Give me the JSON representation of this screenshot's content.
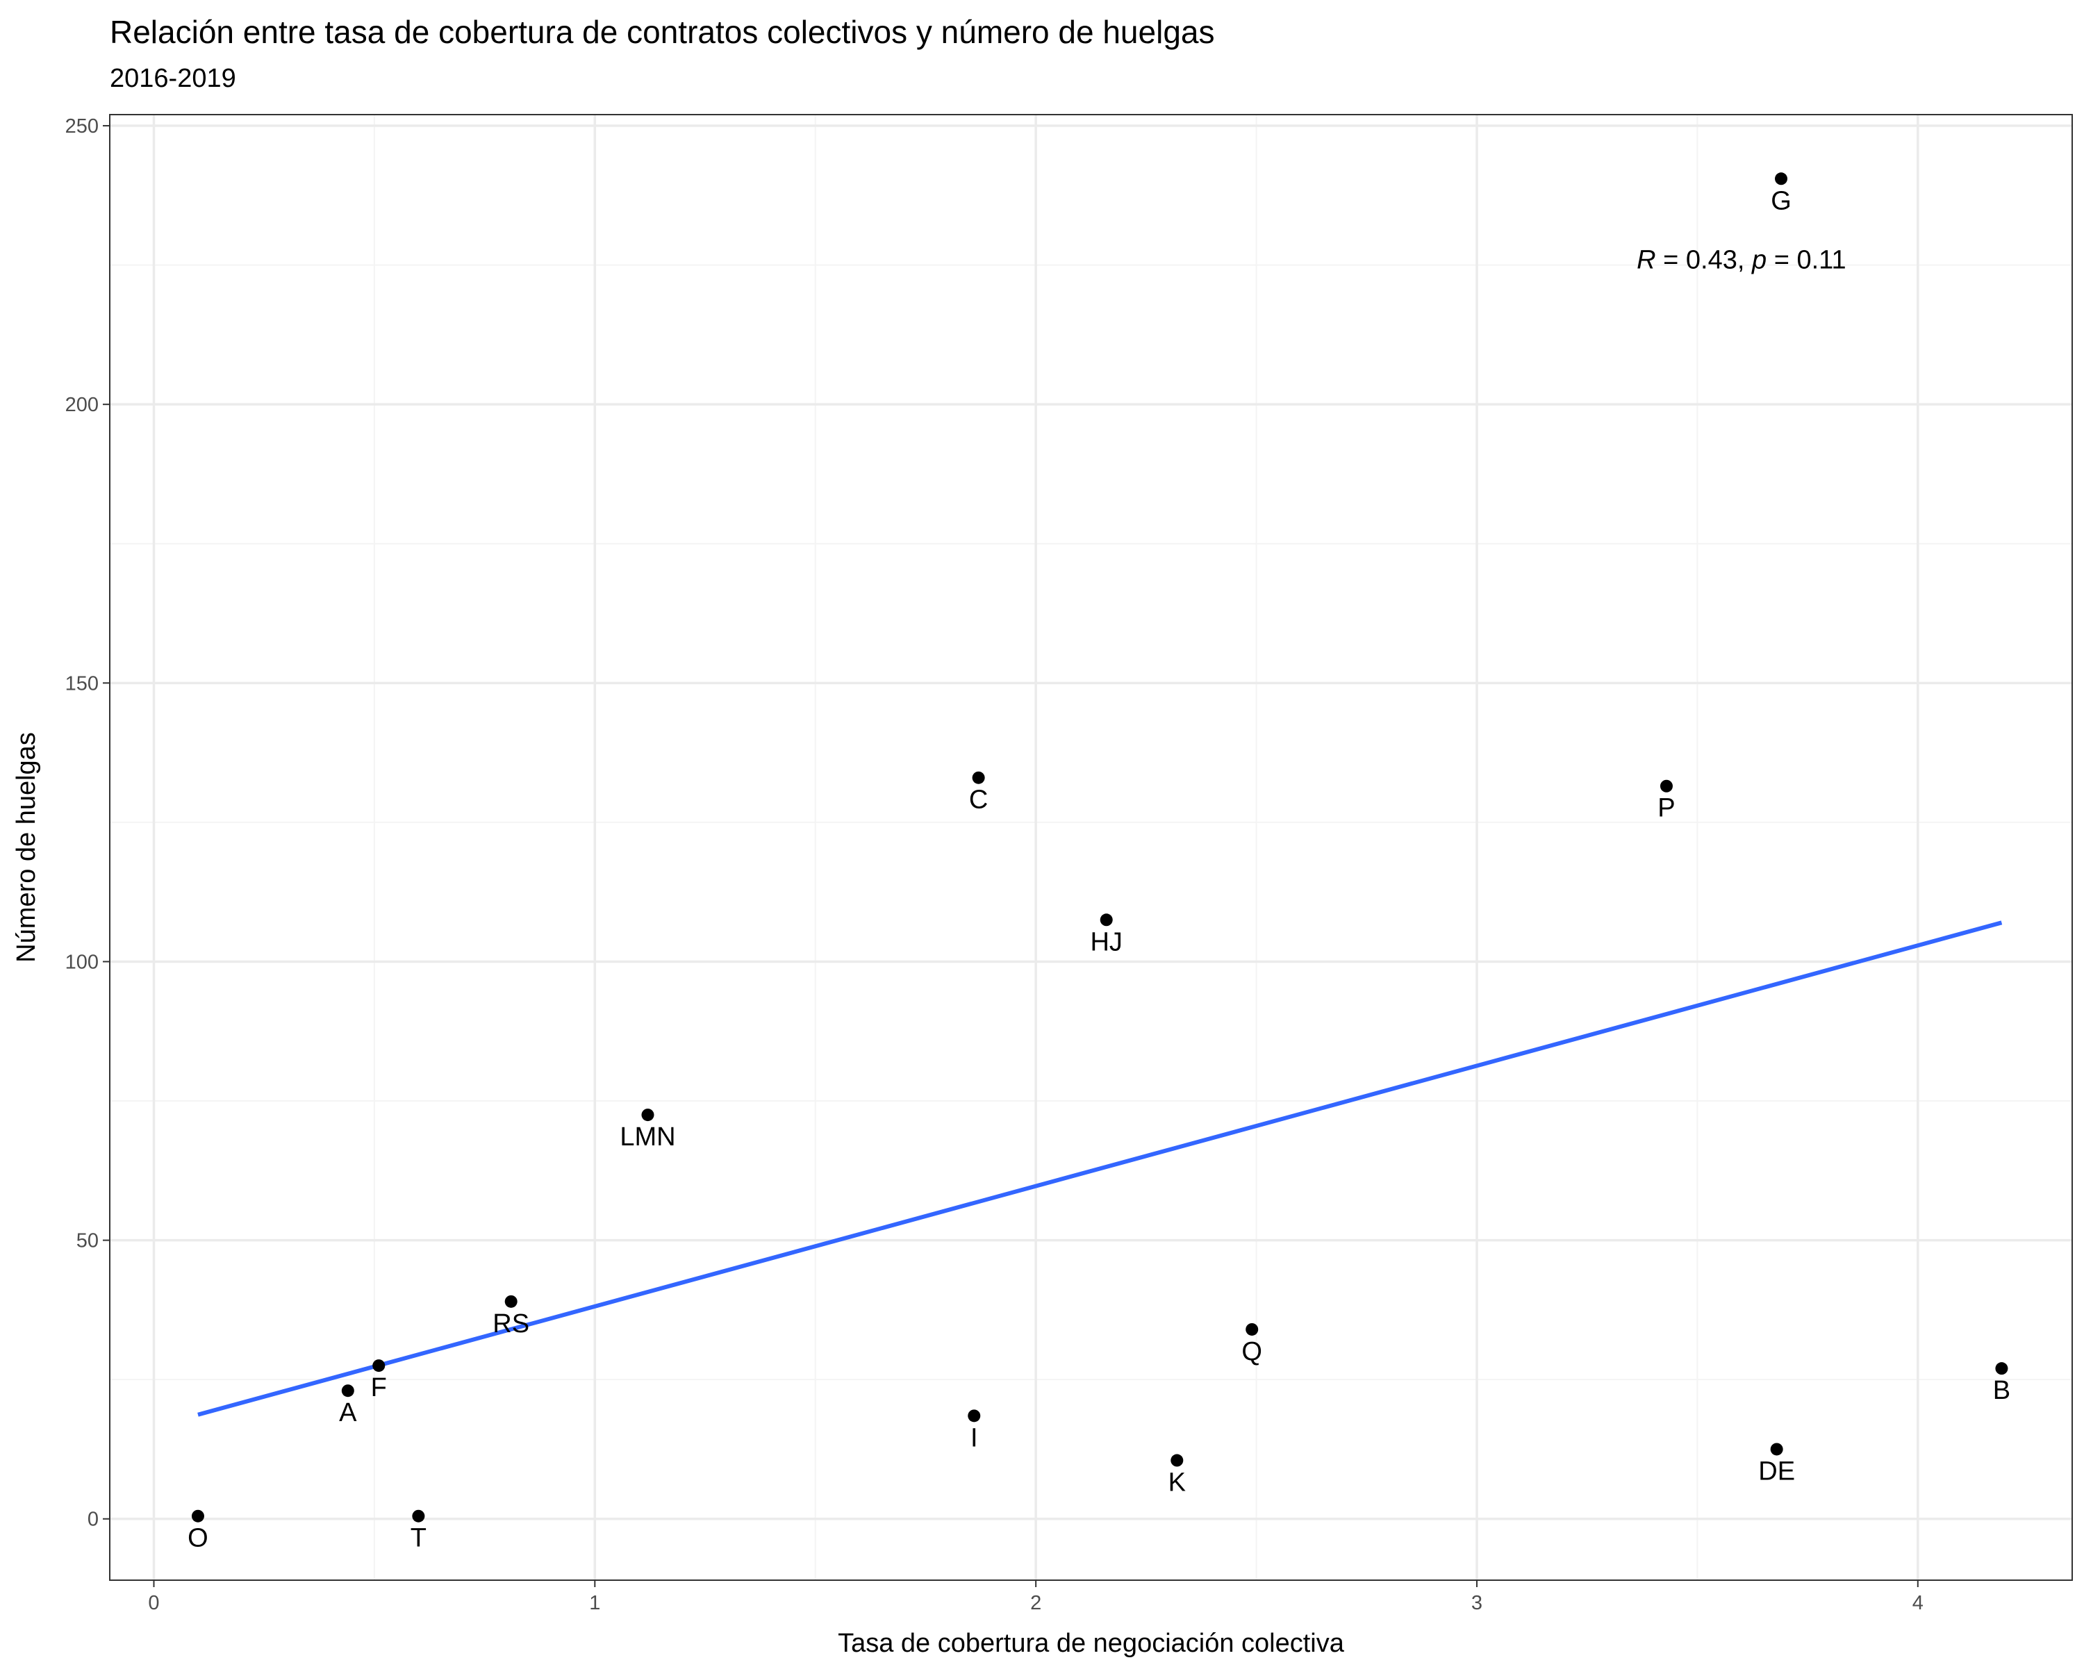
{
  "chart_data": {
    "type": "scatter",
    "title": "Relación entre tasa de cobertura de contratos colectivos y número de huelgas",
    "subtitle": "2016-2019",
    "xlabel": "Tasa de cobertura de negociación colectiva",
    "ylabel": "Número de huelgas",
    "xlim": [
      -0.1,
      4.35
    ],
    "ylim": [
      -11,
      252
    ],
    "x_ticks": [
      0,
      1,
      2,
      3,
      4
    ],
    "x_tick_labels": [
      "0",
      "1",
      "2",
      "3",
      "4"
    ],
    "y_ticks": [
      0,
      50,
      100,
      150,
      200,
      250
    ],
    "y_tick_labels": [
      "0",
      "50",
      "100",
      "150",
      "200",
      "250"
    ],
    "grid": true,
    "points": [
      {
        "label": "O",
        "x": 0.1,
        "y": 0.5
      },
      {
        "label": "A",
        "x": 0.44,
        "y": 23
      },
      {
        "label": "F",
        "x": 0.51,
        "y": 27.5
      },
      {
        "label": "T",
        "x": 0.6,
        "y": 0.5
      },
      {
        "label": "RS",
        "x": 0.81,
        "y": 39
      },
      {
        "label": "LMN",
        "x": 1.12,
        "y": 72.5
      },
      {
        "label": "C",
        "x": 1.87,
        "y": 133
      },
      {
        "label": "I",
        "x": 1.86,
        "y": 18.5
      },
      {
        "label": "HJ",
        "x": 2.16,
        "y": 107.5
      },
      {
        "label": "K",
        "x": 2.32,
        "y": 10.5
      },
      {
        "label": "Q",
        "x": 2.49,
        "y": 34
      },
      {
        "label": "P",
        "x": 3.43,
        "y": 131.5
      },
      {
        "label": "G",
        "x": 3.69,
        "y": 240.5
      },
      {
        "label": "DE",
        "x": 3.68,
        "y": 12.5
      },
      {
        "label": "B",
        "x": 4.19,
        "y": 27
      }
    ],
    "trend_line": {
      "x": [
        0.1,
        4.19
      ],
      "y": [
        18.7,
        107
      ]
    },
    "annotation": {
      "r_symbol": "R",
      "r_text": " = 0.43, ",
      "p_symbol": "p",
      "p_text": " = 0.11",
      "x": 3.6,
      "y": 226
    }
  },
  "colors": {
    "trend_line": "#3366ff",
    "points": "#000000",
    "grid_major": "#ebebeb",
    "grid_minor": "#f4f4f4",
    "panel_border": "#333333"
  }
}
